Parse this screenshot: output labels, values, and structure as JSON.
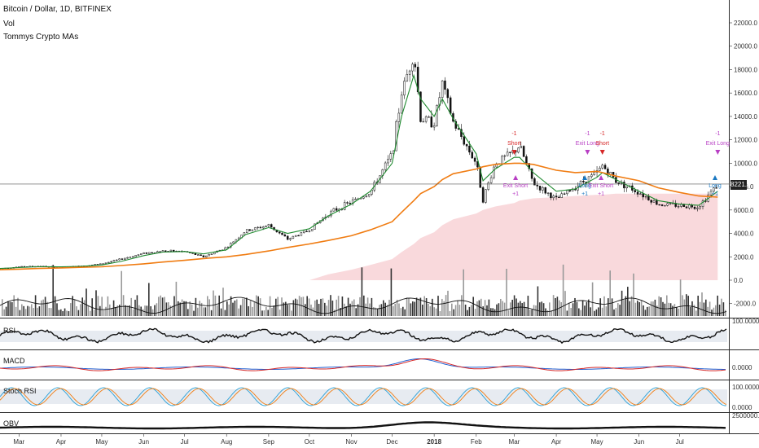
{
  "header": {
    "symbol_line": "Bitcoin / Dollar, 1D, BITFINEX",
    "indicator_1": "Vol",
    "indicator_2": "Tommys Crypto MAs"
  },
  "colors": {
    "candle_up": "#ffffff",
    "candle_down": "#111111",
    "ma_fast": "#1f8a2f",
    "ma_slow": "#f07c12",
    "long_term_fill": "#f9d9dc",
    "signal_short": "#d62828",
    "signal_long": "#1a78c2",
    "signal_exit": "#b83fc4",
    "rsi_band": "#cfd8e3",
    "macd_line": "#1f5fd1",
    "macd_signal": "#d62828",
    "stoch_k": "#2a9fd6",
    "stoch_d": "#f07c12"
  },
  "current_price": "8221.0",
  "panes": {
    "rsi_label": "RSI",
    "macd_label": "MACD",
    "stoch_label": "Stoch RSI",
    "obv_label": "OBV"
  },
  "right_axis": {
    "price_ticks": [
      "22000.0",
      "20000.0",
      "18000.0",
      "16000.0",
      "14000.0",
      "12000.0",
      "10000.0",
      "8000.0",
      "6000.0",
      "4000.0",
      "2000.0",
      "0.0",
      "-2000.0"
    ],
    "rsi_tick": "100.0000",
    "macd_tick": "0.0000",
    "stoch_ticks": [
      "100.0000",
      "0.0000"
    ],
    "obv_tick": "2500000.0000"
  },
  "x_axis": {
    "labels": [
      "Mar",
      "Apr",
      "May",
      "Jun",
      "Jul",
      "Aug",
      "Sep",
      "Oct",
      "Nov",
      "Dec",
      "2018",
      "Feb",
      "Mar",
      "Apr",
      "May",
      "Jun",
      "Jul"
    ]
  },
  "signals": [
    {
      "label_top": "-1",
      "label": "Short",
      "type": "short",
      "date": "2018-03-01"
    },
    {
      "label_top": "",
      "label": "Exit Short",
      "label_bottom": "+1",
      "type": "exit_short",
      "date": "2018-03-02"
    },
    {
      "label_top": "-1",
      "label": "Exit Long",
      "type": "exit_long",
      "date": "2018-04-24"
    },
    {
      "label_top": "",
      "label": "Long",
      "label_bottom": "+1",
      "type": "long",
      "date": "2018-04-22"
    },
    {
      "label_top": "-1",
      "label": "Short",
      "type": "short",
      "date": "2018-05-05"
    },
    {
      "label_top": "",
      "label": "Exit Short",
      "label_bottom": "+1",
      "type": "exit_short",
      "date": "2018-05-04"
    },
    {
      "label_top": "-1",
      "label": "Exit Long",
      "type": "exit_long",
      "date": "2018-07-29"
    },
    {
      "label_top": "",
      "label": "Long",
      "label_bottom": "+1",
      "type": "long",
      "date": "2018-07-27"
    }
  ],
  "chart_data": {
    "type": "line",
    "title": "Bitcoin / Dollar, 1D, BITFINEX",
    "ylim": [
      -2000,
      24000
    ],
    "x": [
      "2017-02-15",
      "2017-03-01",
      "2017-03-15",
      "2017-04-01",
      "2017-04-15",
      "2017-05-01",
      "2017-05-15",
      "2017-06-01",
      "2017-06-15",
      "2017-07-01",
      "2017-07-15",
      "2017-08-01",
      "2017-08-15",
      "2017-09-01",
      "2017-09-15",
      "2017-10-01",
      "2017-10-15",
      "2017-11-01",
      "2017-11-15",
      "2017-12-01",
      "2017-12-08",
      "2017-12-17",
      "2017-12-22",
      "2018-01-01",
      "2018-01-07",
      "2018-01-15",
      "2018-02-01",
      "2018-02-06",
      "2018-02-15",
      "2018-03-01",
      "2018-03-05",
      "2018-03-15",
      "2018-04-01",
      "2018-04-15",
      "2018-05-01",
      "2018-05-05",
      "2018-05-15",
      "2018-06-01",
      "2018-06-15",
      "2018-07-01",
      "2018-07-15",
      "2018-07-29"
    ],
    "series": [
      {
        "name": "",
        "values": [
          1000,
          1150,
          1200,
          1100,
          1200,
          1400,
          1800,
          2300,
          2500,
          2450,
          2000,
          2800,
          4200,
          4700,
          3500,
          4300,
          5700,
          6700,
          7500,
          10800,
          16000,
          19500,
          13800,
          13500,
          16800,
          13500,
          10000,
          6900,
          10000,
          11000,
          11500,
          8300,
          6900,
          8000,
          9200,
          9800,
          8500,
          7500,
          6500,
          6400,
          6300,
          8221
        ]
      },
      {
        "name": "",
        "values": [
          1000,
          1080,
          1150,
          1150,
          1180,
          1300,
          1600,
          2100,
          2400,
          2450,
          2250,
          2600,
          3900,
          4500,
          4000,
          4400,
          5500,
          6500,
          7600,
          10000,
          14000,
          17500,
          15500,
          14000,
          15500,
          13800,
          10800,
          8500,
          9500,
          10500,
          10500,
          9200,
          7600,
          7800,
          8800,
          9200,
          8600,
          7600,
          6800,
          6500,
          6400,
          7600
        ]
      },
      {
        "name": "",
        "values": [
          900,
          950,
          1000,
          1050,
          1100,
          1150,
          1250,
          1400,
          1550,
          1700,
          1850,
          2000,
          2200,
          2500,
          2800,
          3100,
          3400,
          3800,
          4300,
          5000,
          5800,
          6800,
          7400,
          8000,
          8600,
          9100,
          9500,
          9700,
          9900,
          10000,
          10000,
          9900,
          9400,
          9200,
          9300,
          9200,
          8900,
          8500,
          7900,
          7500,
          7200,
          7100
        ]
      },
      {
        "name": "",
        "values": [
          0,
          0,
          0,
          0,
          0,
          0,
          0,
          0,
          0,
          0,
          0,
          0,
          0,
          0,
          0,
          0,
          500,
          900,
          1300,
          1800,
          2400,
          3100,
          3600,
          4100,
          4700,
          5200,
          5700,
          6000,
          6300,
          6600,
          6800,
          7000,
          7100,
          7200,
          7300,
          7300,
          7400,
          7400,
          7400,
          7400,
          7400,
          7400
        ]
      }
    ]
  }
}
